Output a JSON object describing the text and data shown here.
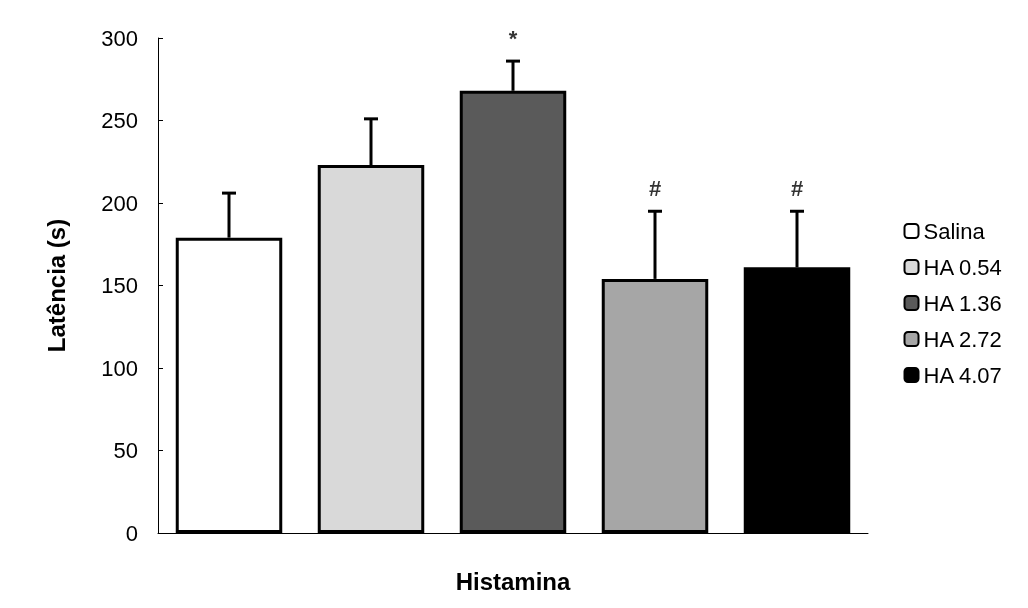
{
  "chart_data": {
    "type": "bar",
    "stacked": true,
    "xlabel": "Histamina",
    "ylabel": "Latência (s)",
    "categories": [
      null,
      null,
      null,
      null,
      null
    ],
    "series": [
      {
        "name": "Salina",
        "color": "#ffffff",
        "values": [
          179,
          null,
          null,
          null,
          null
        ],
        "errors": [
          27,
          null,
          null,
          null,
          null
        ]
      },
      {
        "name": "HA 0.54",
        "color": "#d9d9d9",
        "values": [
          null,
          223,
          null,
          null,
          null
        ],
        "errors": [
          null,
          28,
          null,
          null,
          null
        ]
      },
      {
        "name": "HA 1.36",
        "color": "#5a5a5a",
        "values": [
          null,
          null,
          268,
          null,
          null
        ],
        "errors": [
          null,
          null,
          18,
          null,
          null
        ]
      },
      {
        "name": "HA 2.72",
        "color": "#a6a6a6",
        "values": [
          null,
          null,
          null,
          154,
          null
        ],
        "errors": [
          null,
          null,
          null,
          41,
          null
        ]
      },
      {
        "name": "HA 4.07",
        "color": "#000000",
        "values": [
          null,
          null,
          null,
          null,
          161
        ],
        "errors": [
          null,
          null,
          null,
          null,
          34
        ]
      }
    ],
    "annotations": [
      {
        "text": "*",
        "y": 286
      },
      {
        "text": "#",
        "y": 195
      },
      {
        "text": "#",
        "y": 195
      }
    ],
    "ylim": [
      0,
      300
    ],
    "yticks": [
      0,
      50,
      100,
      150,
      200,
      250,
      300
    ],
    "grid": false,
    "legend": "right"
  }
}
